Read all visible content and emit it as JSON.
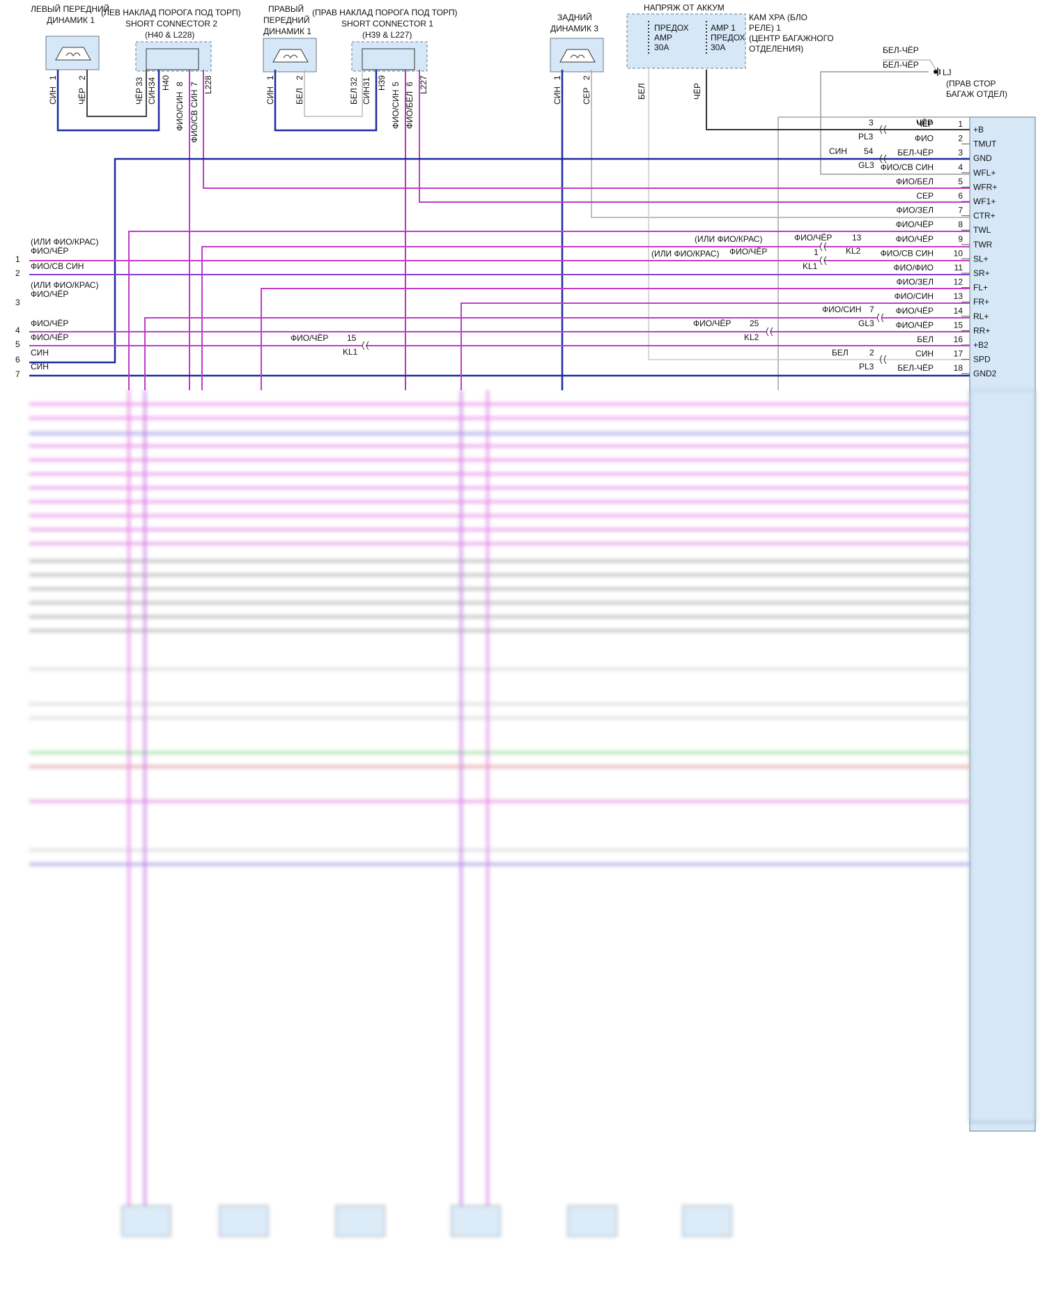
{
  "battery_title": "НАПРЯЖ ОТ АККУМ",
  "fuse_left": [
    "ПРЕДОХ",
    "AMP",
    "30A"
  ],
  "fuse_right": [
    "AMP 1",
    "ПРЕДОХ",
    "30A"
  ],
  "relay_box": [
    "КАМ ХРА (БЛО",
    "РЕЛЕ) 1",
    "(ЦЕНТР БАГАЖНОГО",
    "ОТДЕЛЕНИЯ)"
  ],
  "fuse_wire_left": "БЕЛ",
  "fuse_wire_right": "ЧЁР",
  "ground": {
    "top1": "БЕЛ-ЧЁР",
    "top2": "БЕЛ-ЧЁР",
    "name": "LJ",
    "desc1": "(ПРАВ СТОР",
    "desc2": "БАГАЖ ОТДЕЛ)"
  },
  "speaker_left": {
    "title": [
      "ЛЕВЫЙ ПЕРЕДНИЙ",
      "ДИНАМИК 1"
    ],
    "pins": [
      {
        "num": "1",
        "wire": "СИН"
      },
      {
        "num": "2",
        "wire": "ЧЁР"
      }
    ]
  },
  "short_conn_2": {
    "title": [
      "(ЛЕВ НАКЛАД ПОРОГА ПОД ТОРП)",
      "SHORT CONNECTOR 2",
      "(H40 & L228)"
    ],
    "pins": [
      {
        "num": "33",
        "wire": "ЧЁР"
      },
      {
        "num": "34",
        "wire": "СИН"
      },
      {
        "num": "",
        "wire": "H40"
      },
      {
        "num": "8",
        "wire": "ФИО/СИН"
      },
      {
        "num": "7",
        "wire": "ФИО/СВ СИН"
      },
      {
        "num": "",
        "wire": "L228"
      }
    ]
  },
  "speaker_right": {
    "title": [
      "ПРАВЫЙ",
      "ПЕРЕДНИЙ",
      "ДИНАМИК 1"
    ],
    "pins": [
      {
        "num": "1",
        "wire": "СИН"
      },
      {
        "num": "2",
        "wire": "БЕЛ"
      }
    ]
  },
  "short_conn_1": {
    "title": [
      "(ПРАВ НАКЛАД ПОРОГА ПОД ТОРП)",
      "SHORT CONNECTOR 1",
      "(H39 & L227)"
    ],
    "pins": [
      {
        "num": "32",
        "wire": "БЕЛ"
      },
      {
        "num": "31",
        "wire": "СИН"
      },
      {
        "num": "",
        "wire": "H39"
      },
      {
        "num": "5",
        "wire": "ФИО/СИН"
      },
      {
        "num": "6",
        "wire": "ФИО/БЕЛ"
      },
      {
        "num": "",
        "wire": "L227"
      }
    ]
  },
  "speaker_rear": {
    "title": [
      "ЗАДНИЙ",
      "ДИНАМИК 3"
    ],
    "pins": [
      {
        "num": "1",
        "wire": "СИН"
      },
      {
        "num": "2",
        "wire": "СЕР"
      }
    ]
  },
  "module_pins": [
    {
      "num": "1",
      "name": "+B",
      "wire": "ЧЁР"
    },
    {
      "num": "2",
      "name": "TMUT",
      "wire": "ФИО"
    },
    {
      "num": "3",
      "name": "GND",
      "wire": "БЕЛ-ЧЁР"
    },
    {
      "num": "4",
      "name": "WFL+",
      "wire": "ФИО/СВ СИН"
    },
    {
      "num": "5",
      "name": "WFR+",
      "wire": "ФИО/БЕЛ"
    },
    {
      "num": "6",
      "name": "WF1+",
      "wire": "СЕР"
    },
    {
      "num": "7",
      "name": "CTR+",
      "wire": "ФИО/ЗЕЛ"
    },
    {
      "num": "8",
      "name": "TWL",
      "wire": "ФИО/ЧЁР"
    },
    {
      "num": "9",
      "name": "TWR",
      "wire": "ФИО/ЧЁР"
    },
    {
      "num": "10",
      "name": "SL+",
      "wire": "ФИО/СВ СИН"
    },
    {
      "num": "11",
      "name": "SR+",
      "wire": "ФИО/ФИО"
    },
    {
      "num": "12",
      "name": "FL+",
      "wire": "ФИО/ЗЕЛ"
    },
    {
      "num": "13",
      "name": "FR+",
      "wire": "ФИО/СИН"
    },
    {
      "num": "14",
      "name": "RL+",
      "wire": "ФИО/ЧЁР"
    },
    {
      "num": "15",
      "name": "RR+",
      "wire": "ФИО/ЧЁР"
    },
    {
      "num": "16",
      "name": "+B2",
      "wire": "БЕЛ"
    },
    {
      "num": "17",
      "name": "SPD",
      "wire": "СИН"
    },
    {
      "num": "18",
      "name": "GND2",
      "wire": "БЕЛ-ЧЁР"
    }
  ],
  "inline_conn": [
    {
      "name": "PL3",
      "num": "3",
      "wire": "ЧЁР"
    },
    {
      "name": "GL3",
      "num": "54",
      "wire": "СИН"
    },
    {
      "name": "KL2",
      "num": "13",
      "wire": "ФИО/ЧЁР",
      "alt": "(ИЛИ ФИО/КРАС)"
    },
    {
      "name": "KL1",
      "num": "1",
      "wire": "ФИО/ЧЁР",
      "alt": "(ИЛИ ФИО/КРАС)"
    },
    {
      "name": "GL3",
      "num": "7",
      "wire": "ФИО/СИН"
    },
    {
      "name": "KL2",
      "num": "25",
      "wire": "ФИО/ЧЁР"
    },
    {
      "name": "KL1",
      "num": "15",
      "wire": "ФИО/ЧЁР"
    },
    {
      "name": "PL3",
      "num": "2",
      "wire": "БЕЛ"
    }
  ],
  "left_edge": [
    {
      "num": "1",
      "wire": "ФИО/ЧЁР",
      "alt": "(ИЛИ ФИО/КРАС)"
    },
    {
      "num": "2",
      "wire": "ФИО/СВ СИН",
      "alt": ""
    },
    {
      "num": "3",
      "wire": "ФИО/ЧЁР",
      "alt": "(ИЛИ ФИО/КРАС)"
    },
    {
      "num": "4",
      "wire": "ФИО/ЧЁР",
      "alt": ""
    },
    {
      "num": "5",
      "wire": "ФИО/ЧЁР",
      "alt": ""
    },
    {
      "num": "6",
      "wire": "СИН",
      "alt": ""
    },
    {
      "num": "7",
      "wire": "СИН",
      "alt": ""
    }
  ]
}
